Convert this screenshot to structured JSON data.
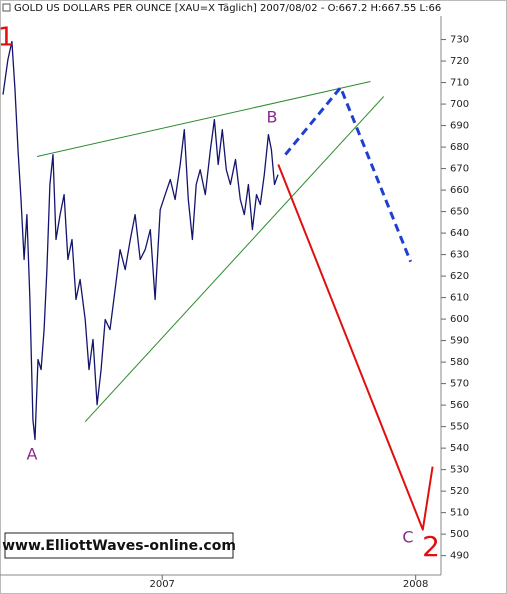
{
  "chart_data": {
    "type": "line",
    "title": "GOLD US DOLLARS PER OUNCE [XAU=X  Täglich] 2007/08/02 - O:667.2 H:667.55 L:66",
    "watermark": "www.ElliottWaves-online.com",
    "xlim": [
      2006.36,
      2008.1
    ],
    "xticks": [
      2007,
      2008
    ],
    "ylim": [
      481,
      747
    ],
    "yticks": [
      490,
      500,
      510,
      520,
      530,
      540,
      550,
      560,
      570,
      580,
      590,
      600,
      610,
      620,
      630,
      640,
      650,
      660,
      670,
      680,
      690,
      700,
      710,
      720,
      730
    ],
    "series": [
      {
        "name": "Gold",
        "color": "#14146e",
        "width": 1.3,
        "dashed": false,
        "x": [
          2006.372,
          2006.391,
          2006.407,
          2006.419,
          2006.431,
          2006.443,
          2006.455,
          2006.466,
          2006.478,
          2006.49,
          2006.498,
          2006.51,
          2006.522,
          2006.534,
          2006.545,
          2006.557,
          2006.569,
          2006.581,
          2006.597,
          2006.613,
          2006.628,
          2006.644,
          2006.66,
          2006.676,
          2006.696,
          2006.711,
          2006.727,
          2006.743,
          2006.759,
          2006.775,
          2006.794,
          2006.814,
          2006.834,
          2006.854,
          2006.874,
          2006.893,
          2006.913,
          2006.933,
          2006.953,
          2006.972,
          2006.992,
          2007.012,
          2007.032,
          2007.051,
          2007.071,
          2007.087,
          2007.103,
          2007.119,
          2007.134,
          2007.15,
          2007.17,
          2007.19,
          2007.206,
          2007.221,
          2007.237,
          2007.253,
          2007.269,
          2007.289,
          2007.308,
          2007.324,
          2007.34,
          2007.356,
          2007.372,
          2007.387,
          2007.403,
          2007.419,
          2007.431,
          2007.443,
          2007.457
        ],
        "values": [
          704.4,
          720.7,
          729.1,
          706.7,
          678.8,
          655.6,
          627.7,
          648.6,
          609.1,
          553.3,
          544.0,
          581.2,
          576.5,
          595.1,
          623.0,
          662.6,
          676.5,
          637.0,
          648.6,
          657.9,
          627.7,
          637.0,
          609.1,
          618.4,
          599.8,
          576.5,
          590.5,
          560.2,
          576.5,
          599.8,
          595.1,
          613.7,
          632.3,
          623.0,
          637.0,
          648.6,
          627.7,
          632.3,
          641.6,
          609.1,
          650.9,
          657.9,
          664.9,
          655.6,
          671.9,
          688.1,
          655.6,
          637.0,
          662.6,
          669.5,
          657.9,
          678.8,
          692.8,
          671.9,
          688.1,
          669.5,
          662.6,
          674.2,
          655.6,
          648.6,
          662.6,
          641.6,
          657.9,
          653.3,
          667.2,
          685.8,
          678.8,
          662.6,
          667.2
        ]
      },
      {
        "name": "Upper trendline",
        "color": "#2e8b2e",
        "width": 1,
        "dashed": false,
        "x": [
          2006.506,
          2007.822
        ],
        "values": [
          675.6,
          710.5
        ]
      },
      {
        "name": "Lower trendline",
        "color": "#2e8b2e",
        "width": 1,
        "dashed": false,
        "x": [
          2006.696,
          2007.874
        ],
        "values": [
          552.3,
          703.5
        ]
      },
      {
        "name": "Alternate path",
        "color": "#1f3fd0",
        "width": 3,
        "dashed": true,
        "x": [
          2007.486,
          2007.704,
          2007.98
        ],
        "values": [
          676.5,
          707.7,
          626.7
        ]
      },
      {
        "name": "Projected path",
        "color": "#e01010",
        "width": 2,
        "dashed": false,
        "x": [
          2007.458,
          2008.028,
          2008.067
        ],
        "values": [
          671.9,
          502.1,
          531.4
        ]
      }
    ],
    "annotations": [
      {
        "text": "1",
        "color": "#e01010"
      },
      {
        "text": "A",
        "color": "#8b2a8b"
      },
      {
        "text": "B",
        "color": "#8b2a8b"
      },
      {
        "text": "C",
        "color": "#8b2a8b"
      },
      {
        "text": "2",
        "color": "#e01010"
      }
    ]
  }
}
